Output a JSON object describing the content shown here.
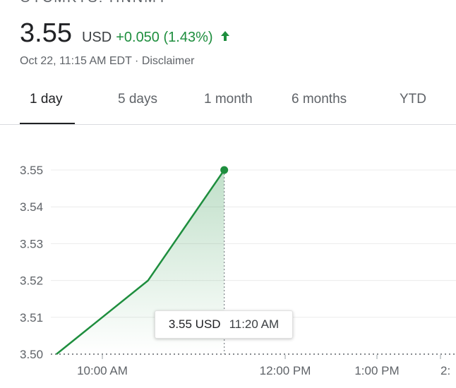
{
  "header": {
    "ticker_cut": "OTCMKTS: HNNMY",
    "price": "3.55",
    "currency": "USD",
    "change": "+0.050 (1.43%)",
    "timestamp_disclaimer": "Oct 22, 11:15 AM EDT · Disclaimer",
    "up_color": "#1e8e3e",
    "arrow_icon": "arrow-up-icon"
  },
  "tabs": [
    {
      "label": "1 day",
      "active": true
    },
    {
      "label": "5 days",
      "active": false
    },
    {
      "label": "1 month",
      "active": false
    },
    {
      "label": "6 months",
      "active": false
    },
    {
      "label": "YTD",
      "active": false
    }
  ],
  "tooltip": {
    "value": "3.55 USD",
    "time": "11:20 AM"
  },
  "chart_data": {
    "type": "area",
    "y_ticks": [
      "3.55",
      "3.54",
      "3.53",
      "3.52",
      "3.51",
      "3.50"
    ],
    "x_ticks": [
      "10:00 AM",
      "12:00 PM",
      "1:00 PM",
      "2:"
    ],
    "ylim": [
      3.5,
      3.55
    ],
    "series": [
      {
        "points": [
          {
            "time": "9:30 AM",
            "value": 3.5
          },
          {
            "time": "10:30 AM",
            "value": 3.52
          },
          {
            "time": "11:20 AM",
            "value": 3.55
          }
        ],
        "color": "#1e8e3e"
      }
    ],
    "grid": true
  }
}
